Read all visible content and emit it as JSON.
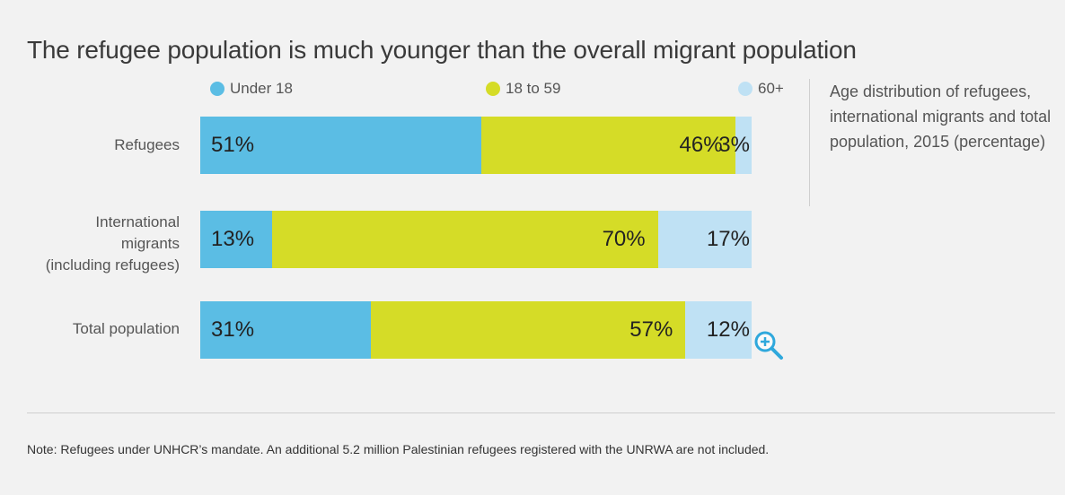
{
  "chart_data": {
    "type": "bar",
    "orientation": "horizontal",
    "stacked": true,
    "title": "The refugee population is much younger than the overall migrant population",
    "categories": [
      [
        "Refugees"
      ],
      [
        "International",
        "migrants",
        "(including refugees)"
      ],
      [
        "Total population"
      ]
    ],
    "series": [
      {
        "name": "Under 18",
        "values": [
          51,
          13,
          31
        ],
        "color": "#5bbde4"
      },
      {
        "name": "18 to 59",
        "values": [
          46,
          70,
          57
        ],
        "color": "#d5dc27"
      },
      {
        "name": "60+",
        "values": [
          3,
          17,
          12
        ],
        "color": "#bfe1f4"
      }
    ],
    "value_labels": [
      [
        "51%",
        "46%",
        "3%"
      ],
      [
        "13%",
        "70%",
        "17%"
      ],
      [
        "31%",
        "57%",
        "12%"
      ]
    ],
    "xlim": [
      0,
      100
    ],
    "legend": "top",
    "grid": false
  },
  "side_note": "Age distribution of refugees, international migrants and total population, 2015 (percentage)",
  "note": "Note: Refugees under UNHCR’s mandate. An additional 5.2 million Palestinian refugees registered with the UNRWA are not included.",
  "icons": {
    "zoom": "zoom-in-icon"
  }
}
